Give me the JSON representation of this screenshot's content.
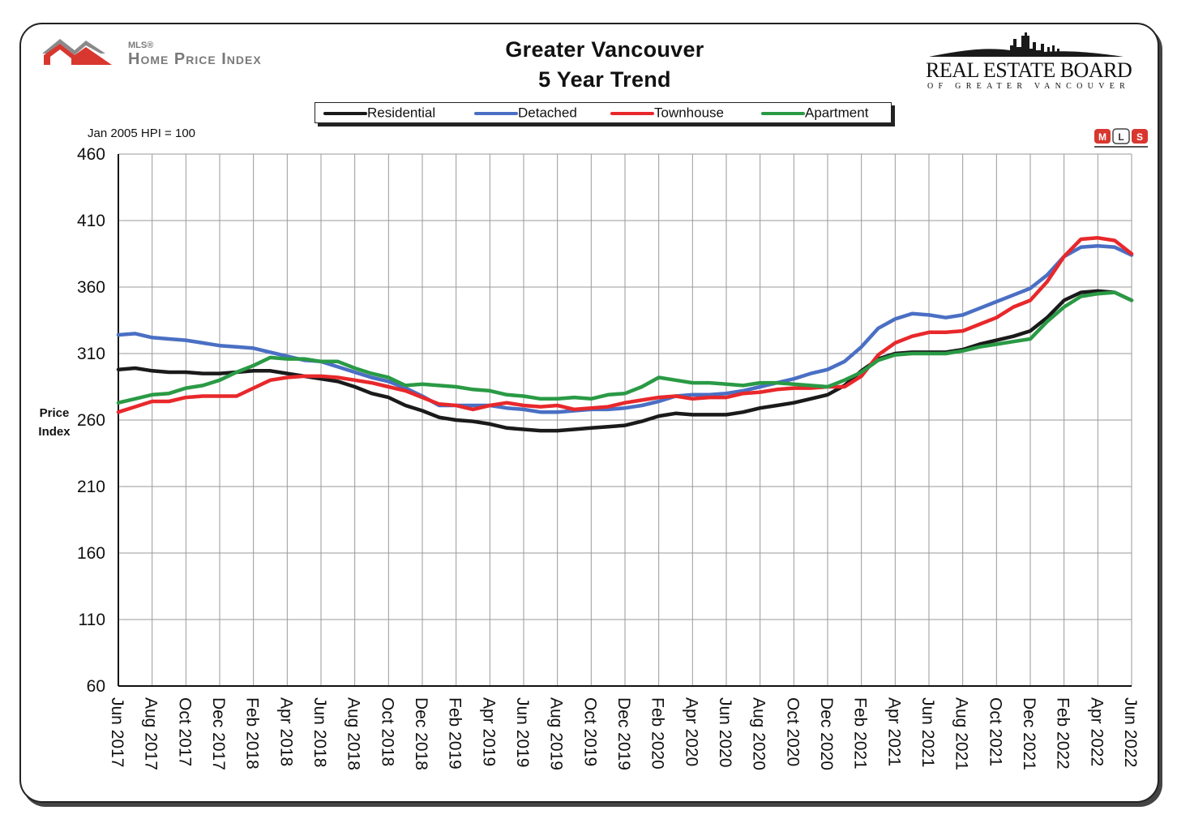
{
  "header": {
    "title_line1": "Greater Vancouver",
    "title_line2": "5 Year Trend",
    "hpi_logo_small": "MLS®",
    "hpi_logo_text": "Home Price Index",
    "reb_name": "REAL ESTATE BOARD",
    "reb_sub": "OF GREATER VANCOUVER",
    "mls_badge": "MLS",
    "base_note": "Jan 2005 HPI = 100"
  },
  "colors": {
    "residential": "#1a1a1a",
    "detached": "#4a6fc4",
    "townhouse": "#e8282b",
    "apartment": "#2a9a45",
    "hpi_logo": "#d8372f",
    "grid": "#9a9a9a"
  },
  "chart_data": {
    "type": "line",
    "title": "Greater Vancouver 5 Year Trend",
    "xlabel": "",
    "ylabel": "Price Index",
    "ylim": [
      60,
      460
    ],
    "yticks": [
      60,
      110,
      160,
      210,
      260,
      310,
      360,
      410,
      460
    ],
    "grid": true,
    "legend_position": "top",
    "x": [
      "Jun 2017",
      "Jul 2017",
      "Aug 2017",
      "Sep 2017",
      "Oct 2017",
      "Nov 2017",
      "Dec 2017",
      "Jan 2018",
      "Feb 2018",
      "Mar 2018",
      "Apr 2018",
      "May 2018",
      "Jun 2018",
      "Jul 2018",
      "Aug 2018",
      "Sep 2018",
      "Oct 2018",
      "Nov 2018",
      "Dec 2018",
      "Jan 2019",
      "Feb 2019",
      "Mar 2019",
      "Apr 2019",
      "May 2019",
      "Jun 2019",
      "Jul 2019",
      "Aug 2019",
      "Sep 2019",
      "Oct 2019",
      "Nov 2019",
      "Dec 2019",
      "Jan 2020",
      "Feb 2020",
      "Mar 2020",
      "Apr 2020",
      "May 2020",
      "Jun 2020",
      "Jul 2020",
      "Aug 2020",
      "Sep 2020",
      "Oct 2020",
      "Nov 2020",
      "Dec 2020",
      "Jan 2021",
      "Feb 2021",
      "Mar 2021",
      "Apr 2021",
      "May 2021",
      "Jun 2021",
      "Jul 2021",
      "Aug 2021",
      "Sep 2021",
      "Oct 2021",
      "Nov 2021",
      "Dec 2021",
      "Jan 2022",
      "Feb 2022",
      "Mar 2022",
      "Apr 2022",
      "May 2022",
      "Jun 2022"
    ],
    "xtick_labels": [
      "Jun 2017",
      "Aug 2017",
      "Oct 2017",
      "Dec 2017",
      "Feb 2018",
      "Apr 2018",
      "Jun 2018",
      "Aug 2018",
      "Oct 2018",
      "Dec 2018",
      "Feb 2019",
      "Apr 2019",
      "Jun 2019",
      "Aug 2019",
      "Oct 2019",
      "Dec 2019",
      "Feb 2020",
      "Apr 2020",
      "Jun 2020",
      "Aug 2020",
      "Oct 2020",
      "Dec 2020",
      "Feb 2021",
      "Apr 2021",
      "Jun 2021",
      "Aug 2021",
      "Oct 2021",
      "Dec 2021",
      "Feb 2022",
      "Apr 2022",
      "Jun 2022"
    ],
    "series": [
      {
        "name": "Residential",
        "color": "#1a1a1a",
        "values": [
          298,
          299,
          297,
          296,
          296,
          295,
          295,
          296,
          297,
          297,
          295,
          293,
          291,
          289,
          285,
          280,
          277,
          271,
          267,
          262,
          260,
          259,
          257,
          254,
          253,
          252,
          252,
          253,
          254,
          255,
          256,
          259,
          263,
          265,
          264,
          264,
          264,
          266,
          269,
          271,
          273,
          276,
          279,
          286,
          297,
          306,
          310,
          311,
          311,
          311,
          313,
          317,
          320,
          323,
          327,
          337,
          350,
          356,
          357,
          356,
          350
        ]
      },
      {
        "name": "Detached",
        "color": "#4a6fc4",
        "values": [
          324,
          325,
          322,
          321,
          320,
          318,
          316,
          315,
          314,
          311,
          308,
          305,
          304,
          300,
          296,
          292,
          289,
          284,
          278,
          271,
          271,
          271,
          271,
          269,
          268,
          266,
          266,
          267,
          268,
          268,
          269,
          271,
          274,
          278,
          279,
          279,
          280,
          282,
          285,
          288,
          291,
          295,
          298,
          304,
          315,
          329,
          336,
          340,
          339,
          337,
          339,
          344,
          349,
          354,
          359,
          369,
          383,
          390,
          391,
          390,
          384
        ]
      },
      {
        "name": "Townhouse",
        "color": "#e8282b",
        "values": [
          266,
          270,
          274,
          274,
          277,
          278,
          278,
          278,
          284,
          290,
          292,
          293,
          293,
          292,
          290,
          288,
          285,
          282,
          277,
          272,
          271,
          268,
          271,
          273,
          271,
          270,
          271,
          268,
          269,
          270,
          273,
          275,
          277,
          278,
          276,
          277,
          277,
          280,
          281,
          283,
          284,
          284,
          285,
          285,
          293,
          309,
          318,
          323,
          326,
          326,
          327,
          332,
          337,
          345,
          350,
          364,
          383,
          396,
          397,
          395,
          385
        ]
      },
      {
        "name": "Apartment",
        "color": "#2a9a45",
        "values": [
          273,
          276,
          279,
          280,
          284,
          286,
          290,
          296,
          301,
          307,
          306,
          306,
          304,
          304,
          299,
          295,
          292,
          286,
          287,
          286,
          285,
          283,
          282,
          279,
          278,
          276,
          276,
          277,
          276,
          279,
          280,
          285,
          292,
          290,
          288,
          288,
          287,
          286,
          288,
          288,
          287,
          286,
          285,
          290,
          296,
          305,
          309,
          310,
          310,
          310,
          312,
          315,
          317,
          319,
          321,
          334,
          345,
          353,
          355,
          356,
          350
        ]
      }
    ]
  }
}
